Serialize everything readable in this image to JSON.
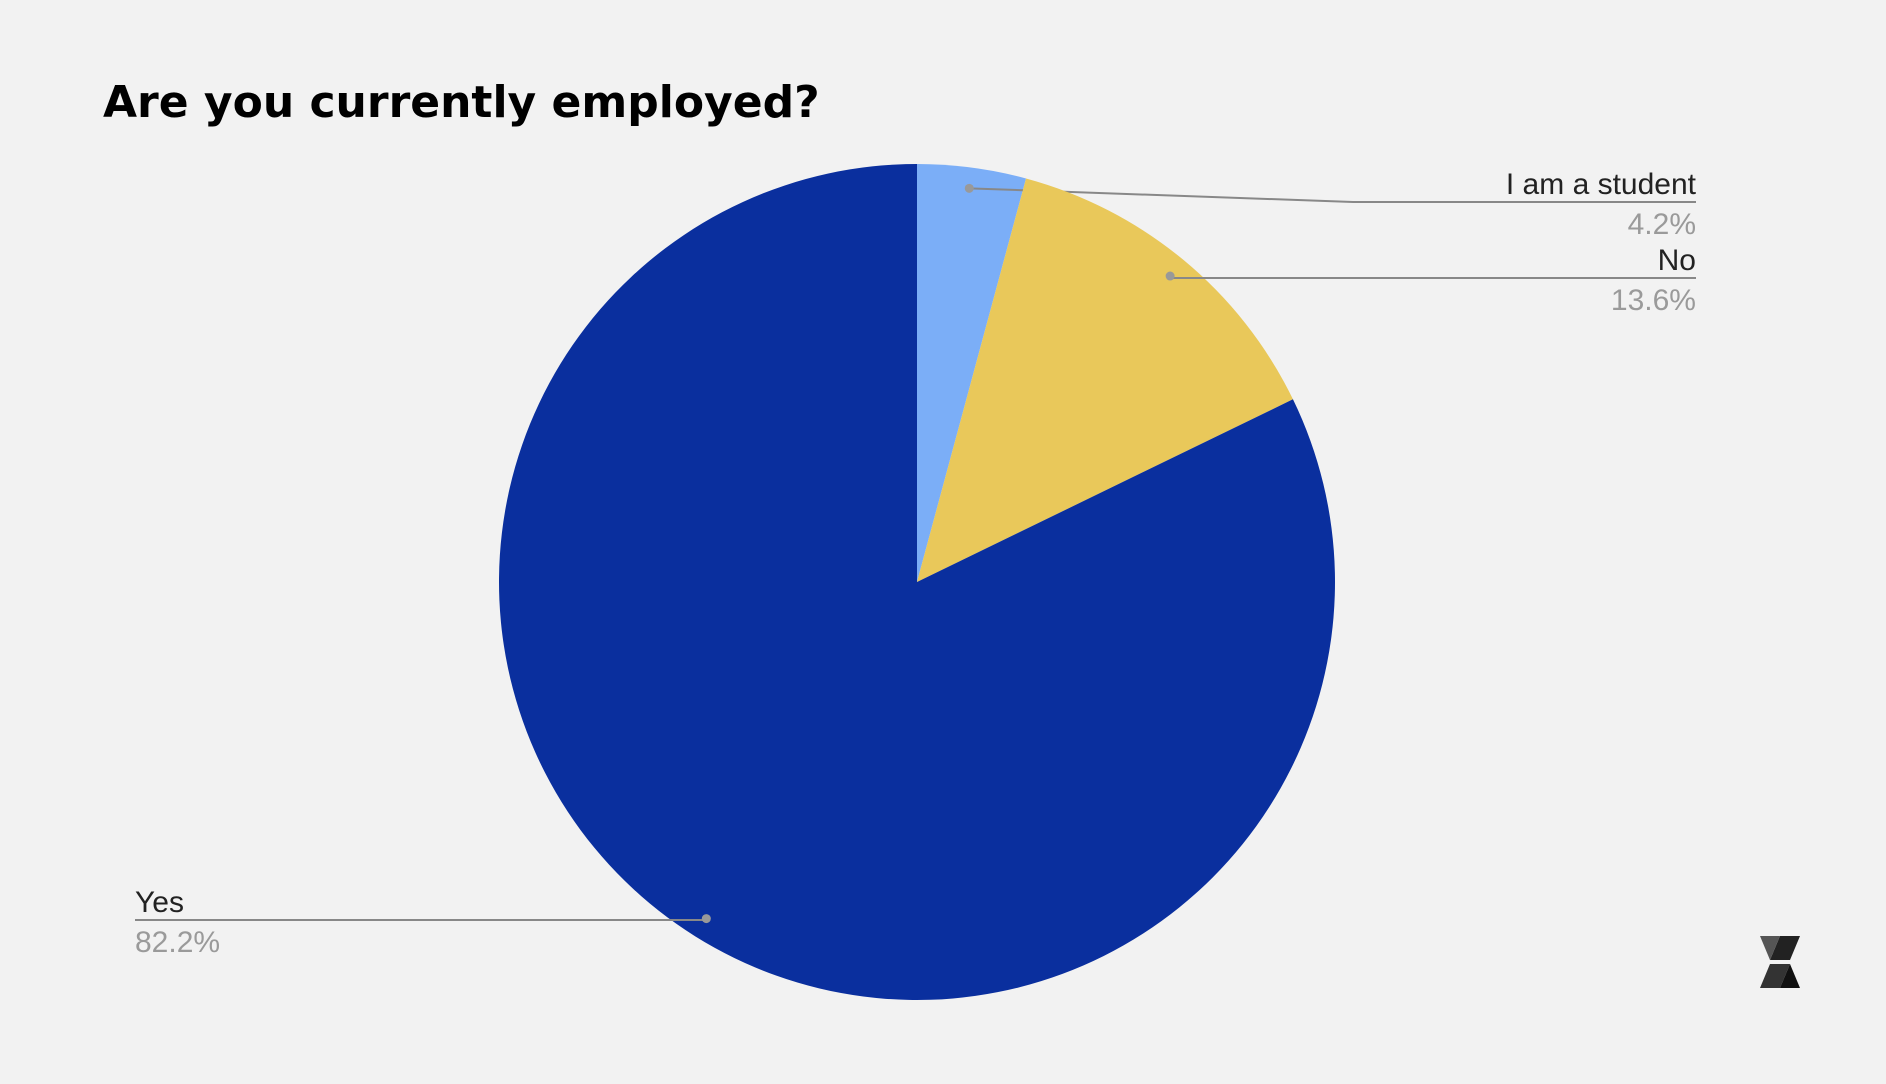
{
  "chart_data": {
    "type": "pie",
    "title": "Are you currently employed?",
    "categories": [
      "I am a student",
      "No",
      "Yes"
    ],
    "values": [
      4.2,
      13.6,
      82.2
    ],
    "value_labels": [
      "4.2%",
      "13.6%",
      "82.2%"
    ],
    "colors": [
      "#7baef7",
      "#e9c85a",
      "#0a2f9e"
    ]
  }
}
